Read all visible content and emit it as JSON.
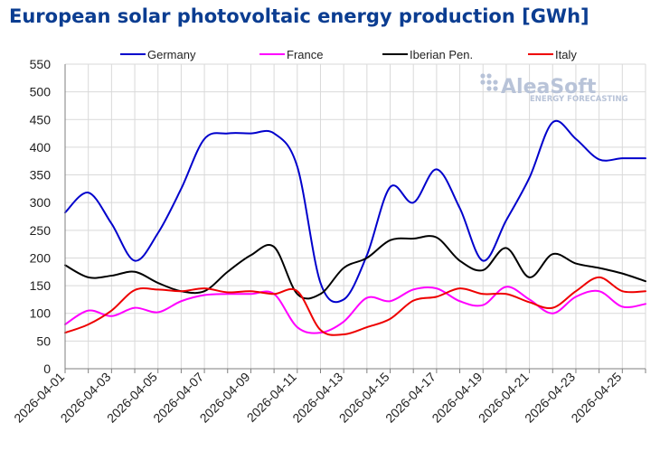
{
  "chart_data": {
    "type": "line",
    "title": "European solar photovoltaic energy production [GWh]",
    "watermark": {
      "brand": "AleaSoft",
      "tagline": "ENERGY FORECASTING"
    },
    "xlabel": "",
    "ylabel": "",
    "ylim": [
      0,
      550
    ],
    "yticks": [
      0,
      50,
      100,
      150,
      200,
      250,
      300,
      350,
      400,
      450,
      500,
      550
    ],
    "grid": true,
    "legend_position": "top",
    "categories": [
      "2026-04-01",
      "2026-04-02",
      "2026-04-03",
      "2026-04-04",
      "2026-04-05",
      "2026-04-06",
      "2026-04-07",
      "2026-04-08",
      "2026-04-09",
      "2026-04-10",
      "2026-04-11",
      "2026-04-12",
      "2026-04-13",
      "2026-04-14",
      "2026-04-15",
      "2026-04-16",
      "2026-04-17",
      "2026-04-18",
      "2026-04-19",
      "2026-04-20",
      "2026-04-21",
      "2026-04-22",
      "2026-04-23",
      "2026-04-24",
      "2026-04-25",
      "2026-04-26"
    ],
    "xtick_labels": [
      "2026-04-01",
      "2026-04-03",
      "2026-04-05",
      "2026-04-07",
      "2026-04-09",
      "2026-04-11",
      "2026-04-13",
      "2026-04-15",
      "2026-04-17",
      "2026-04-19",
      "2026-04-21",
      "2026-04-23",
      "2026-04-25"
    ],
    "series": [
      {
        "name": "Germany",
        "color": "#0000cc",
        "values": [
          282,
          318,
          262,
          195,
          245,
          325,
          415,
          425,
          425,
          425,
          365,
          155,
          125,
          205,
          328,
          300,
          360,
          290,
          195,
          268,
          345,
          445,
          415,
          378,
          380,
          380
        ]
      },
      {
        "name": "France",
        "color": "#ff00ff",
        "values": [
          80,
          105,
          95,
          110,
          102,
          122,
          133,
          135,
          135,
          135,
          75,
          65,
          85,
          128,
          122,
          143,
          145,
          122,
          115,
          148,
          125,
          100,
          130,
          140,
          112,
          117
        ]
      },
      {
        "name": "Iberian Pen.",
        "color": "#000000",
        "values": [
          187,
          165,
          168,
          175,
          155,
          140,
          140,
          175,
          205,
          220,
          135,
          135,
          182,
          200,
          232,
          235,
          237,
          195,
          178,
          218,
          165,
          207,
          190,
          182,
          172,
          158
        ]
      },
      {
        "name": "Italy",
        "color": "#ee0000",
        "values": [
          65,
          80,
          105,
          142,
          143,
          140,
          145,
          138,
          140,
          135,
          140,
          70,
          62,
          75,
          90,
          123,
          130,
          145,
          135,
          135,
          120,
          110,
          140,
          165,
          140,
          140
        ]
      }
    ]
  }
}
